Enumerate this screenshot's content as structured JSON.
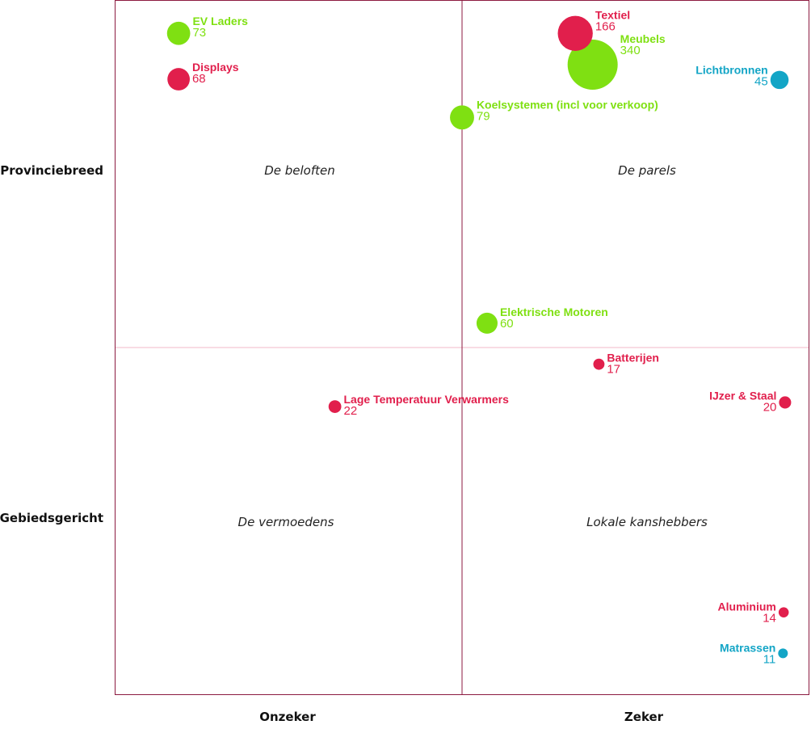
{
  "chart_data": {
    "type": "scatter",
    "subtype": "bubble-quadrant",
    "xlim": [
      0,
      100
    ],
    "ylim": [
      0,
      100
    ],
    "grid": false,
    "x_tick_labels": [
      "Onzeker",
      "Zeker"
    ],
    "y_tick_labels": [
      "Provinciebreed",
      "Gebiedsgericht"
    ],
    "quadrants": {
      "top_left": "De beloften",
      "top_right": "De parels",
      "bottom_left": "De vermoedens",
      "bottom_right": "Lokale kanshebbers"
    },
    "colors": {
      "green": "#7fe012",
      "red": "#e11f4c",
      "blue": "#13a5c6",
      "frame": "#8c1a40",
      "midline_h": "#f3b8c8"
    },
    "points": [
      {
        "name": "EV Laders",
        "value": 73,
        "x": 9.2,
        "y": 95.2,
        "color": "green",
        "label": "right"
      },
      {
        "name": "Displays",
        "value": 68,
        "x": 9.2,
        "y": 88.6,
        "color": "red",
        "label": "right"
      },
      {
        "name": "Koelsystemen (incl voor verkoop)",
        "value": 79,
        "x": 50.0,
        "y": 83.1,
        "color": "green",
        "label": "right"
      },
      {
        "name": "Textiel",
        "value": 166,
        "x": 66.3,
        "y": 95.2,
        "color": "red",
        "label": "right"
      },
      {
        "name": "Meubels",
        "value": 340,
        "x": 68.8,
        "y": 90.7,
        "color": "green",
        "label": "right"
      },
      {
        "name": "Lichtbronnen",
        "value": 45,
        "x": 95.7,
        "y": 88.5,
        "color": "blue",
        "label": "left"
      },
      {
        "name": "Elektrische Motoren",
        "value": 60,
        "x": 53.6,
        "y": 53.5,
        "color": "green",
        "label": "right"
      },
      {
        "name": "Batterijen",
        "value": 17,
        "x": 69.7,
        "y": 47.6,
        "color": "red",
        "label": "right"
      },
      {
        "name": "Lage Temperatuur Verwarmers",
        "value": 22,
        "x": 31.7,
        "y": 41.5,
        "color": "red",
        "label": "right"
      },
      {
        "name": "IJzer & Staal",
        "value": 20,
        "x": 96.5,
        "y": 42.1,
        "color": "red",
        "label": "left"
      },
      {
        "name": "Aluminium",
        "value": 14,
        "x": 96.3,
        "y": 11.9,
        "color": "red",
        "label": "left"
      },
      {
        "name": "Matrassen",
        "value": 11,
        "x": 96.2,
        "y": 6.0,
        "color": "blue",
        "label": "left"
      }
    ]
  }
}
